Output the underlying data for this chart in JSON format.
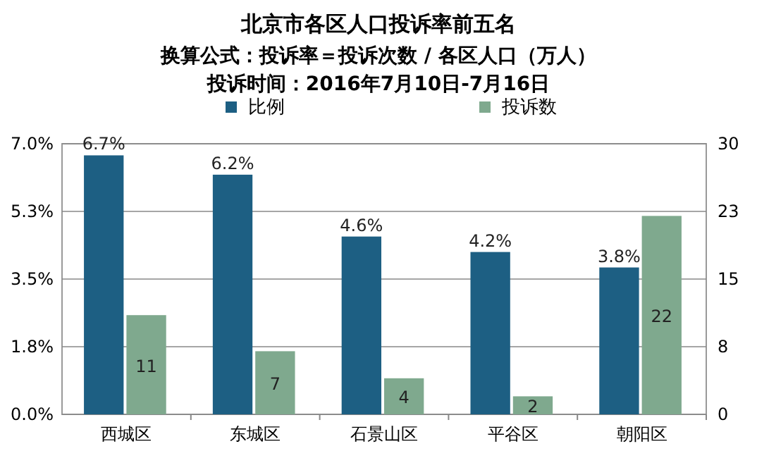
{
  "chart_data": {
    "type": "bar",
    "title": "北京市各区人口投诉率前五名",
    "subtitle": "换算公式：投诉率＝投诉次数 / 各区人口（万人）",
    "annotations": [
      "投诉时间：2016年7月10日-7月16日"
    ],
    "categories": [
      "西城区",
      "东城区",
      "石景山区",
      "平谷区",
      "朝阳区"
    ],
    "series": [
      {
        "name": "比例",
        "color": "#1d5f83",
        "values": [
          6.7,
          6.2,
          4.6,
          4.2,
          3.8
        ],
        "value_labels": [
          "6.7%",
          "6.2%",
          "4.6%",
          "4.2%",
          "3.8%"
        ]
      },
      {
        "name": "投诉数",
        "color": "#7fa98e",
        "axis": "y2",
        "values": [
          11,
          7,
          4,
          2,
          22
        ],
        "value_labels": [
          "11",
          "7",
          "4",
          "2",
          "22"
        ]
      }
    ],
    "ylim": [
      0,
      7
    ],
    "yticks": [
      {
        "value": 0,
        "label": "0.0%"
      },
      {
        "value": 1.75,
        "label": "1.8%"
      },
      {
        "value": 3.5,
        "label": "3.5%"
      },
      {
        "value": 5.25,
        "label": "5.3%"
      },
      {
        "value": 7,
        "label": "7.0%"
      }
    ],
    "y2lim": [
      0,
      30
    ],
    "y2ticks": [
      0,
      {
        "value": 7.5,
        "label": "8"
      },
      15,
      {
        "value": 22.5,
        "label": "23"
      },
      30
    ],
    "grid": "y",
    "legend": "top"
  }
}
